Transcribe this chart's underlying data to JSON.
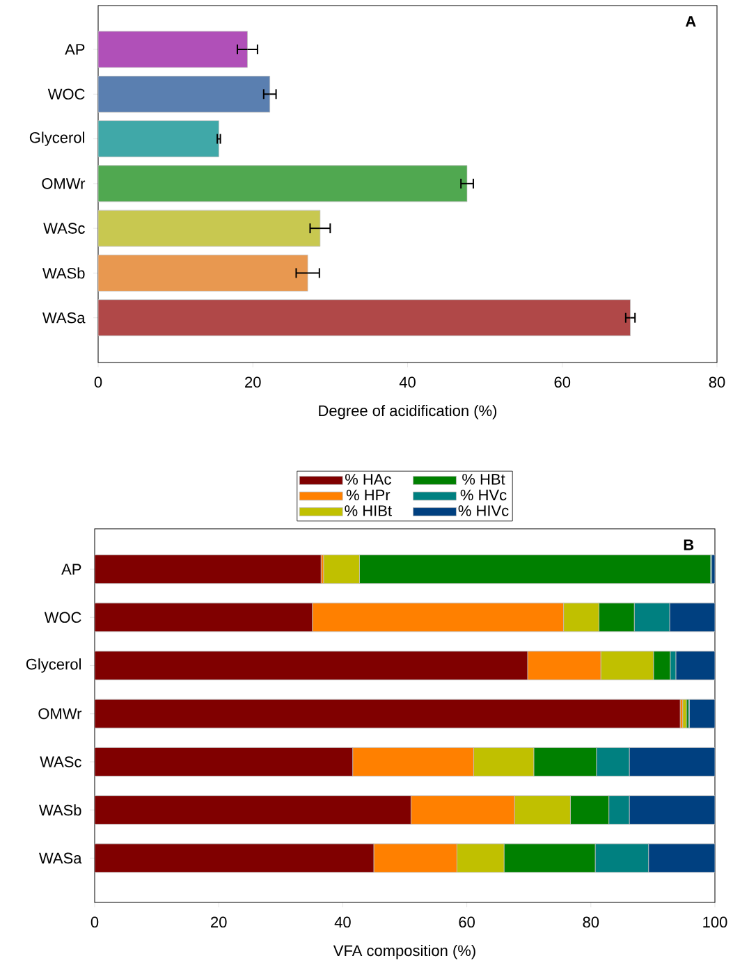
{
  "chart_data": [
    {
      "type": "bar",
      "orientation": "horizontal",
      "categories": [
        "AP",
        "WOC",
        "Glycerol",
        "OMWr",
        "WASc",
        "WASb",
        "WASa"
      ],
      "values": [
        19.3,
        22.2,
        15.6,
        47.7,
        28.7,
        27.1,
        68.8
      ],
      "errors": [
        1.3,
        0.8,
        0.2,
        0.8,
        1.3,
        1.5,
        0.6
      ],
      "colors": [
        "#b050b8",
        "#5a7fb0",
        "#40a8a8",
        "#50a850",
        "#c8c850",
        "#e89850",
        "#b04848"
      ],
      "xlim": [
        0,
        80
      ],
      "xticks": [
        0,
        20,
        40,
        60,
        80
      ],
      "xlabel": "Degree of acidification (%)",
      "annotations": [
        "A"
      ]
    },
    {
      "type": "bar",
      "orientation": "horizontal",
      "stacked": true,
      "categories": [
        "AP",
        "WOC",
        "Glycerol",
        "OMWr",
        "WASc",
        "WASb",
        "WASa"
      ],
      "series": [
        {
          "name": "% HAc",
          "color": "#800000",
          "values": [
            36.5,
            35.1,
            69.8,
            94.4,
            41.6,
            51.0,
            45.0
          ]
        },
        {
          "name": "% HPr",
          "color": "#ff8000",
          "values": [
            0.4,
            40.5,
            11.8,
            0.4,
            19.5,
            16.7,
            13.4
          ]
        },
        {
          "name": "% HIBt",
          "color": "#c0c000",
          "values": [
            5.8,
            5.7,
            8.5,
            0.6,
            9.7,
            9.0,
            7.6
          ]
        },
        {
          "name": "% HBt",
          "color": "#008000",
          "values": [
            56.6,
            5.7,
            2.7,
            0.3,
            10.1,
            6.2,
            14.7
          ]
        },
        {
          "name": "% HVc",
          "color": "#008080",
          "values": [
            0.2,
            5.7,
            0.9,
            0.2,
            5.3,
            3.3,
            8.6
          ]
        },
        {
          "name": "% HIVc",
          "color": "#004080",
          "values": [
            0.5,
            7.3,
            6.3,
            4.1,
            13.8,
            13.8,
            10.7
          ]
        }
      ],
      "xlim": [
        0,
        100
      ],
      "xticks": [
        0,
        20,
        40,
        60,
        80,
        100
      ],
      "xlabel": "VFA composition (%)",
      "legend": "top",
      "annotations": [
        "B"
      ]
    }
  ]
}
